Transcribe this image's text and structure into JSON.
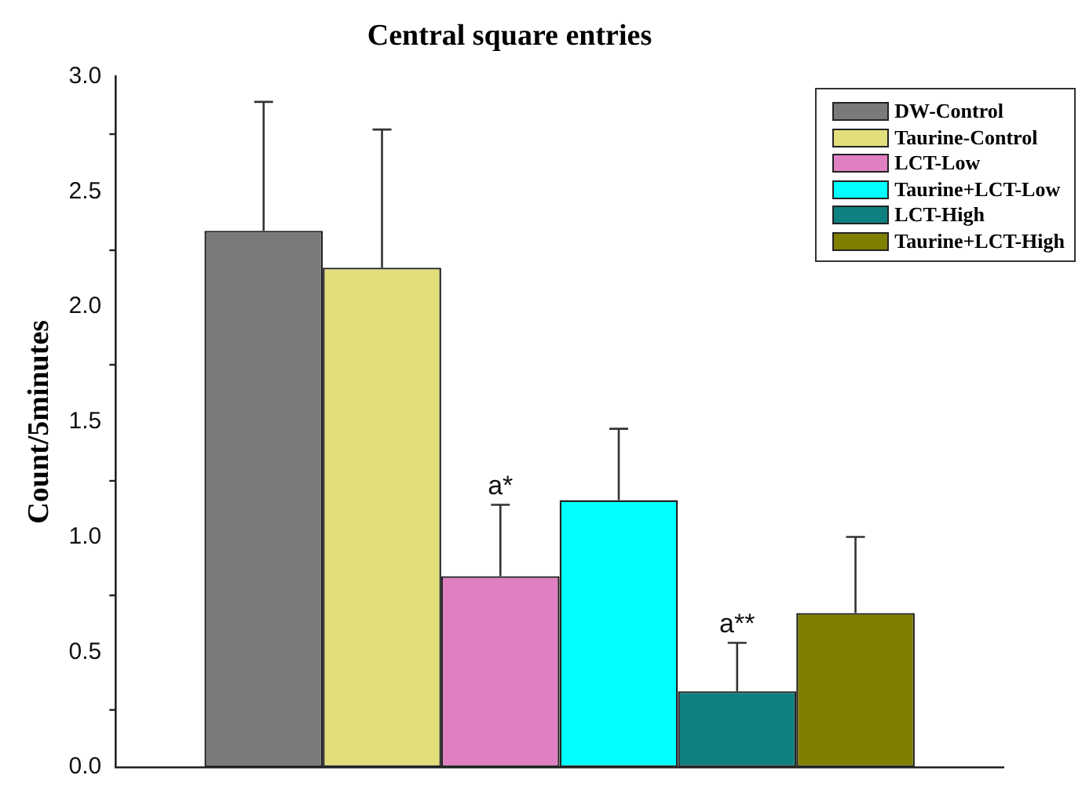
{
  "chart_data": {
    "type": "bar",
    "title": "Central square entries",
    "ylabel": "Count/5minutes",
    "categories": [
      null
    ],
    "series": [
      {
        "name": "DW-Control",
        "color": "#7a7a7a",
        "values": [
          2.33
        ],
        "errors": [
          0.56
        ]
      },
      {
        "name": "Taurine-Control",
        "color": "#e2de7c",
        "values": [
          2.17
        ],
        "errors": [
          0.6
        ]
      },
      {
        "name": "LCT-Low",
        "color": "#e07fc2",
        "values": [
          0.83
        ],
        "errors": [
          0.31
        ],
        "value_labels": [
          "a*"
        ]
      },
      {
        "name": "Taurine+LCT-Low",
        "color": "#00ffff",
        "values": [
          1.16
        ],
        "errors": [
          0.31
        ]
      },
      {
        "name": "LCT-High",
        "color": "#0f8080",
        "values": [
          0.33
        ],
        "errors": [
          0.21
        ],
        "value_labels": [
          "a**"
        ]
      },
      {
        "name": "Taurine+LCT-High",
        "color": "#808000",
        "values": [
          0.67
        ],
        "errors": [
          0.33
        ]
      }
    ],
    "ylim": [
      0,
      3
    ],
    "yticks": [
      {
        "value": 0,
        "label": "0.0"
      },
      {
        "value": 0.25,
        "label": null
      },
      0.5,
      {
        "value": 0.75,
        "label": null
      },
      {
        "value": 1,
        "label": "1.0"
      },
      {
        "value": 1.25,
        "label": null
      },
      1.5,
      {
        "value": 1.75,
        "label": null
      },
      {
        "value": 2,
        "label": "2.0"
      },
      {
        "value": 2.25,
        "label": null
      },
      2.5,
      {
        "value": 2.75,
        "label": null
      },
      {
        "value": 3,
        "label": "3.0"
      }
    ],
    "grid": false,
    "legend": "top right"
  }
}
